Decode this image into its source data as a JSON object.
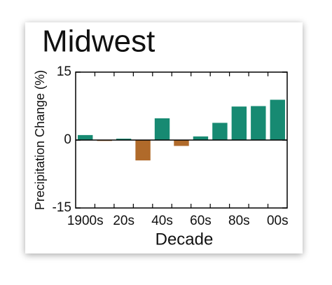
{
  "chart_data": {
    "type": "bar",
    "title": "Midwest",
    "x_label": "Decade",
    "y_label": "Precipitation Change (%)",
    "categories": [
      "1900s",
      null,
      "20s",
      null,
      "40s",
      null,
      "60s",
      null,
      "80s",
      null,
      "00s"
    ],
    "values": [
      1.1,
      -0.2,
      0.3,
      -4.5,
      4.8,
      -1.3,
      0.8,
      3.8,
      7.4,
      7.5,
      8.9
    ],
    "colors": [
      "#178a72",
      "#b06a2a",
      "#178a72",
      "#b06a2a",
      "#178a72",
      "#b06a2a",
      "#178a72",
      "#178a72",
      "#178a72",
      "#178a72",
      "#178a72"
    ],
    "ylim": [
      -15,
      15
    ],
    "yticks": [
      -15,
      0,
      15
    ],
    "grid": false
  }
}
